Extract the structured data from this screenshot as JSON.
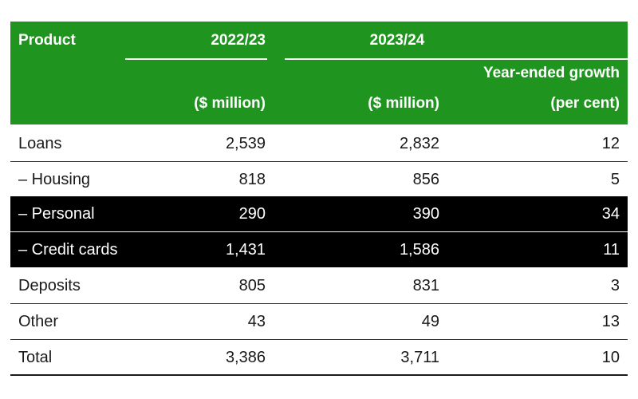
{
  "table": {
    "header": {
      "product": "Product",
      "year1": "2022/23",
      "year2": "2023/24",
      "growth_line1": "Year-ended growth",
      "unit1": "($ million)",
      "unit2": "($ million)",
      "growth_line2": "(per cent)"
    },
    "rows": [
      {
        "label": "Loans",
        "v1": "2,539",
        "v2": "2,832",
        "growth": "12"
      },
      {
        "label": "– Housing",
        "v1": "818",
        "v2": "856",
        "growth": "5"
      },
      {
        "label": "– Personal",
        "v1": "290",
        "v2": "390",
        "growth": "34"
      },
      {
        "label": "– Credit cards",
        "v1": "1,431",
        "v2": "1,586",
        "growth": "11"
      },
      {
        "label": "Deposits",
        "v1": "805",
        "v2": "831",
        "growth": "3"
      },
      {
        "label": "Other",
        "v1": "43",
        "v2": "49",
        "growth": "13"
      },
      {
        "label": "Total",
        "v1": "3,386",
        "v2": "3,711",
        "growth": "10"
      }
    ]
  },
  "colors": {
    "header_green": "#1f951f",
    "highlight_row": "#000000"
  }
}
